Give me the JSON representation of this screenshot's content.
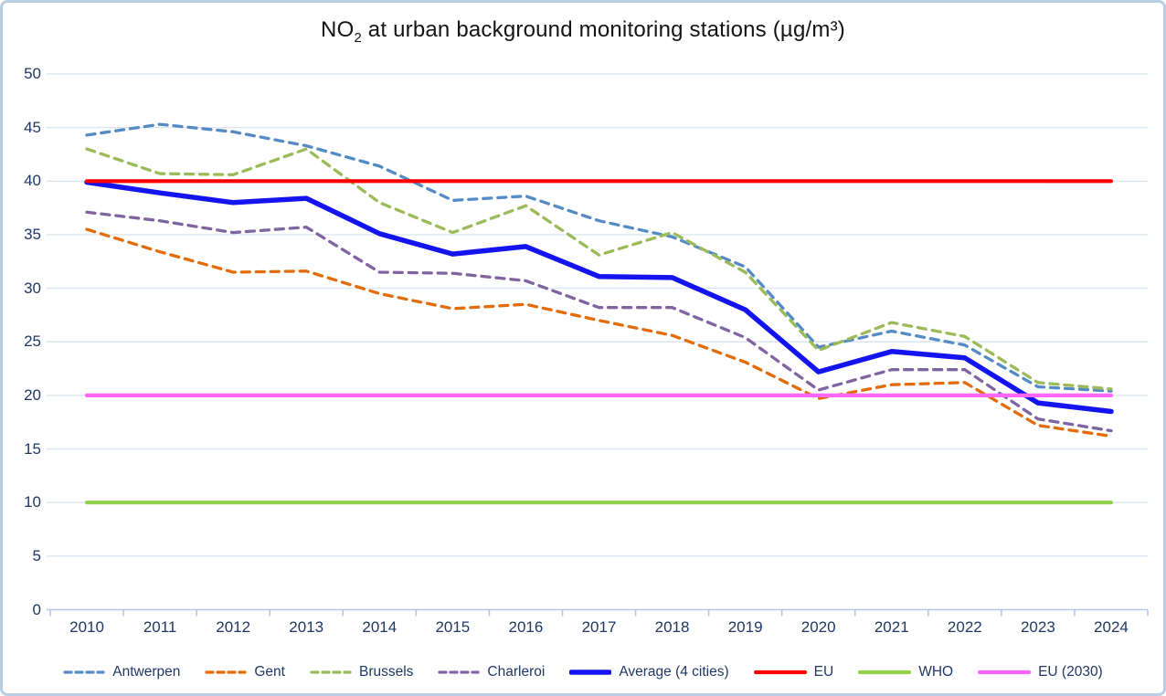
{
  "chart_data": {
    "type": "line",
    "title": "NO2 at urban background monitoring stations (µg/m³)",
    "title_parts": {
      "prefix": "NO",
      "subscript": "2",
      "suffix": " at urban background monitoring stations (µg/m³)"
    },
    "xlabel": "",
    "ylabel": "",
    "x": [
      2010,
      2011,
      2012,
      2013,
      2014,
      2015,
      2016,
      2017,
      2018,
      2019,
      2020,
      2021,
      2022,
      2023,
      2024
    ],
    "ylim": [
      0,
      50
    ],
    "yticks": [
      0,
      5,
      10,
      15,
      20,
      25,
      30,
      35,
      40,
      45,
      50
    ],
    "grid": true,
    "legend_position": "bottom",
    "series": [
      {
        "name": "Antwerpen",
        "style": "dashed",
        "color": "#548bc5",
        "values": [
          44.3,
          45.3,
          44.6,
          43.3,
          41.4,
          38.2,
          38.6,
          36.3,
          34.8,
          32.0,
          24.5,
          26.0,
          24.7,
          20.8,
          20.4
        ]
      },
      {
        "name": "Gent",
        "style": "dashed",
        "color": "#e36c0a",
        "values": [
          35.5,
          33.4,
          31.5,
          31.6,
          29.5,
          28.1,
          28.5,
          27.0,
          25.6,
          23.1,
          19.7,
          21.0,
          21.2,
          17.2,
          16.2
        ]
      },
      {
        "name": "Brussels",
        "style": "dashed",
        "color": "#9bbb59",
        "values": [
          43.0,
          40.7,
          40.6,
          43.0,
          38.0,
          35.2,
          37.7,
          33.1,
          35.2,
          31.5,
          24.2,
          26.8,
          25.5,
          21.2,
          20.6
        ]
      },
      {
        "name": "Charleroi",
        "style": "dashed",
        "color": "#8064a2",
        "values": [
          37.1,
          36.3,
          35.2,
          35.7,
          31.5,
          31.4,
          30.7,
          28.2,
          28.2,
          25.4,
          20.5,
          22.4,
          22.4,
          17.8,
          16.7
        ]
      },
      {
        "name": "Average (4 cities)",
        "style": "solid-thick",
        "color": "#1414f0",
        "values": [
          39.9,
          38.9,
          38.0,
          38.4,
          35.1,
          33.2,
          33.9,
          31.1,
          31.0,
          28.0,
          22.2,
          24.1,
          23.5,
          19.3,
          18.5
        ]
      },
      {
        "name": "EU",
        "style": "solid",
        "color": "#fe0000",
        "constant": 40
      },
      {
        "name": "WHO",
        "style": "solid",
        "color": "#92d050",
        "constant": 10
      },
      {
        "name": "EU (2030)",
        "style": "solid",
        "color": "#ff66ff",
        "constant": 20
      }
    ],
    "colors": {
      "axis_text": "#1f3864",
      "gridline": "#dce6f1",
      "axis_line": "#b4c7e7",
      "border": "#b9cde5",
      "title_text": "#141414"
    }
  }
}
